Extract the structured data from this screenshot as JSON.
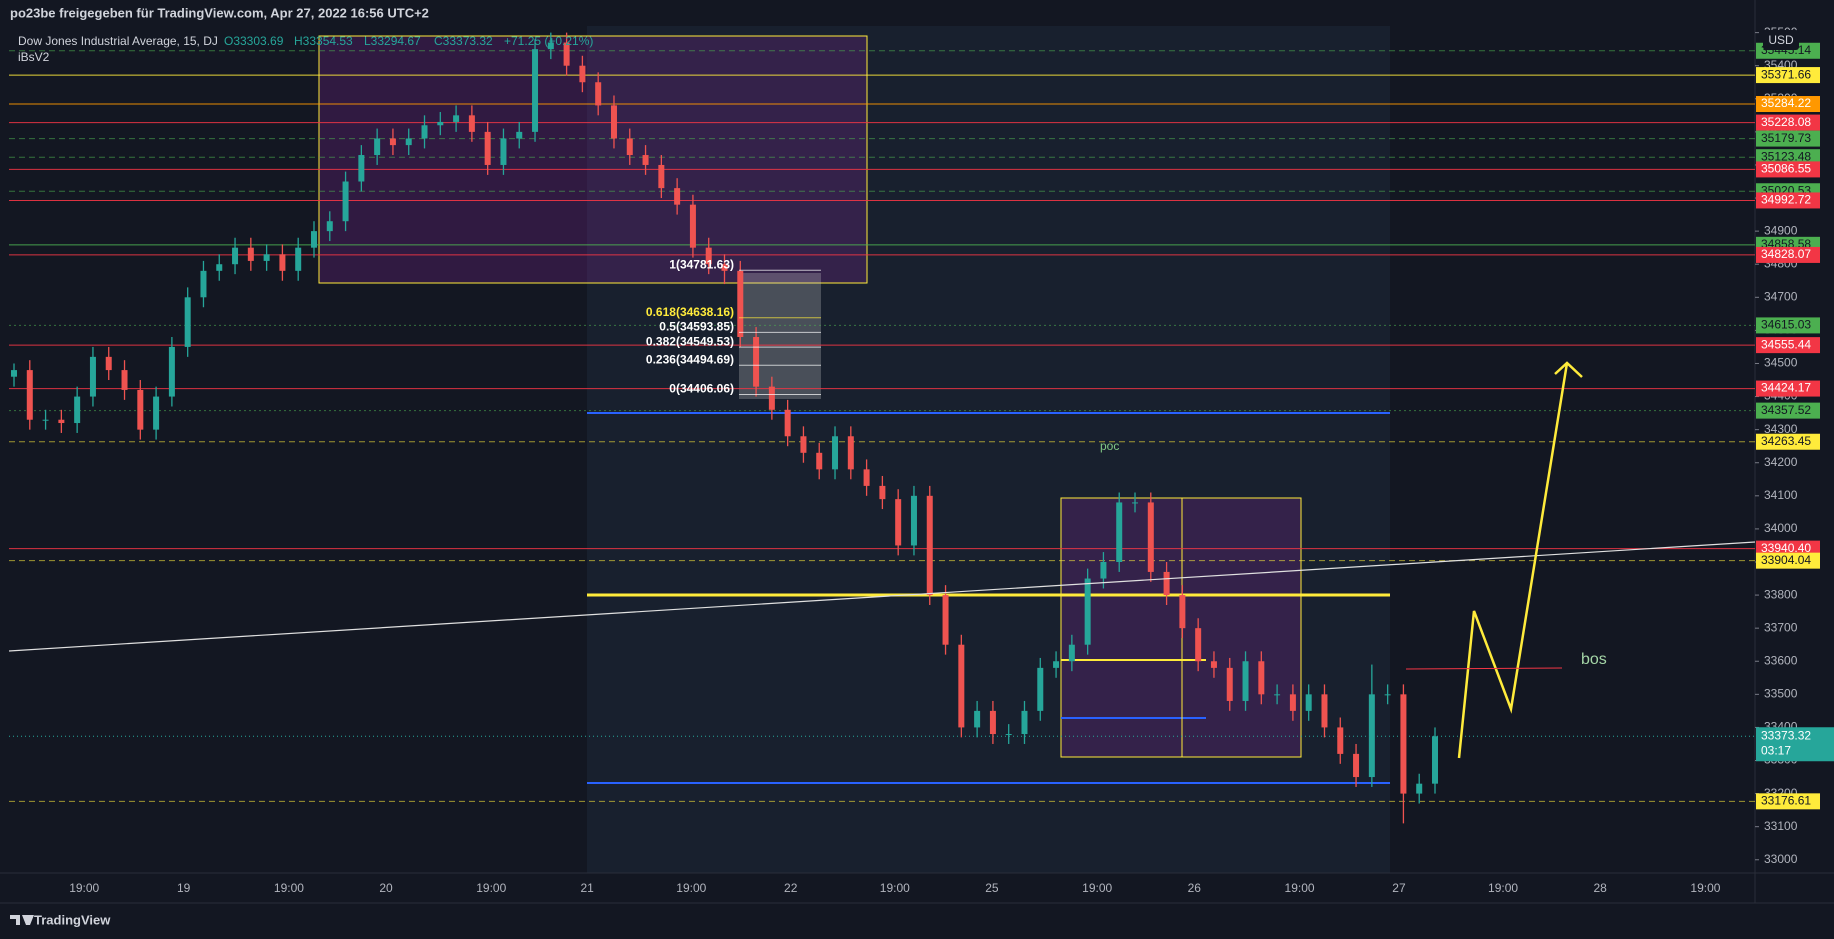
{
  "header": {
    "title": "po23be freigegeben für TradingView.com, Apr 27, 2022 16:56 UTC+2"
  },
  "footer": {
    "brand": "TradingView"
  },
  "chart_data": {
    "type": "candlestick",
    "title": "Dow Jones Industrial Average, 15, DJ",
    "ohlc_labels": [
      "O33303.69",
      "H33354.53",
      "L33294.67",
      "C33373.32"
    ],
    "change": "+71.25 (+0.21%)",
    "indicator": "iBsV2",
    "currency": "USD",
    "ylim": [
      32960,
      35520
    ],
    "yticks": [
      33000,
      33100,
      33200,
      33300,
      33400,
      33500,
      33600,
      33700,
      33800,
      33900,
      34000,
      34100,
      34200,
      34300,
      34400,
      34500,
      34600,
      34700,
      34800,
      34900,
      35000,
      35100,
      35200,
      35300,
      35400,
      35500
    ],
    "x_labels": [
      "19:00",
      "19",
      "19:00",
      "20",
      "19:00",
      "21",
      "19:00",
      "22",
      "19:00",
      "25",
      "19:00",
      "26",
      "19:00",
      "27",
      "19:00",
      "28",
      "19:00"
    ],
    "up_color": "#26a69a",
    "down_color": "#ef5350",
    "candles": [
      [
        34460,
        34500,
        34430,
        34480
      ],
      [
        34480,
        34510,
        34300,
        34330
      ],
      [
        34330,
        34360,
        34300,
        34330
      ],
      [
        34330,
        34360,
        34290,
        34320
      ],
      [
        34320,
        34430,
        34290,
        34400
      ],
      [
        34400,
        34550,
        34370,
        34520
      ],
      [
        34520,
        34550,
        34450,
        34480
      ],
      [
        34480,
        34510,
        34390,
        34420
      ],
      [
        34420,
        34450,
        34270,
        34300
      ],
      [
        34300,
        34430,
        34270,
        34400
      ],
      [
        34400,
        34580,
        34370,
        34550
      ],
      [
        34550,
        34730,
        34520,
        34700
      ],
      [
        34700,
        34810,
        34670,
        34780
      ],
      [
        34780,
        34830,
        34750,
        34800
      ],
      [
        34800,
        34880,
        34770,
        34850
      ],
      [
        34850,
        34880,
        34780,
        34810
      ],
      [
        34810,
        34860,
        34780,
        34830
      ],
      [
        34830,
        34860,
        34750,
        34780
      ],
      [
        34780,
        34880,
        34750,
        34850
      ],
      [
        34850,
        34930,
        34820,
        34900
      ],
      [
        34900,
        34960,
        34870,
        34930
      ],
      [
        34930,
        35080,
        34900,
        35050
      ],
      [
        35050,
        35160,
        35020,
        35130
      ],
      [
        35130,
        35210,
        35100,
        35180
      ],
      [
        35180,
        35210,
        35130,
        35160
      ],
      [
        35160,
        35210,
        35130,
        35180
      ],
      [
        35180,
        35250,
        35150,
        35220
      ],
      [
        35220,
        35260,
        35190,
        35230
      ],
      [
        35230,
        35280,
        35200,
        35250
      ],
      [
        35250,
        35280,
        35170,
        35200
      ],
      [
        35200,
        35230,
        35070,
        35100
      ],
      [
        35100,
        35210,
        35070,
        35180
      ],
      [
        35180,
        35230,
        35150,
        35200
      ],
      [
        35200,
        35480,
        35170,
        35450
      ],
      [
        35450,
        35500,
        35420,
        35470
      ],
      [
        35470,
        35500,
        35370,
        35400
      ],
      [
        35400,
        35430,
        35320,
        35350
      ],
      [
        35350,
        35380,
        35250,
        35280
      ],
      [
        35280,
        35310,
        35150,
        35180
      ],
      [
        35180,
        35210,
        35100,
        35130
      ],
      [
        35130,
        35160,
        35070,
        35100
      ],
      [
        35100,
        35130,
        35000,
        35030
      ],
      [
        35030,
        35060,
        34950,
        34980
      ],
      [
        34980,
        35010,
        34820,
        34850
      ],
      [
        34850,
        34880,
        34770,
        34800
      ],
      [
        34800,
        34830,
        34740,
        34780
      ],
      [
        34780,
        34810,
        34550,
        34580
      ],
      [
        34580,
        34610,
        34400,
        34430
      ],
      [
        34430,
        34460,
        34330,
        34360
      ],
      [
        34360,
        34390,
        34250,
        34280
      ],
      [
        34280,
        34310,
        34200,
        34230
      ],
      [
        34230,
        34260,
        34150,
        34180
      ],
      [
        34180,
        34310,
        34150,
        34280
      ],
      [
        34280,
        34310,
        34150,
        34180
      ],
      [
        34180,
        34210,
        34100,
        34130
      ],
      [
        34130,
        34160,
        34060,
        34090
      ],
      [
        34090,
        34120,
        33920,
        33950
      ],
      [
        33950,
        34130,
        33920,
        34100
      ],
      [
        34100,
        34130,
        33770,
        33800
      ],
      [
        33800,
        33830,
        33620,
        33650
      ],
      [
        33650,
        33680,
        33370,
        33400
      ],
      [
        33400,
        33480,
        33370,
        33450
      ],
      [
        33450,
        33480,
        33350,
        33380
      ],
      [
        33380,
        33410,
        33350,
        33380
      ],
      [
        33380,
        33480,
        33350,
        33450
      ],
      [
        33450,
        33610,
        33420,
        33580
      ],
      [
        33580,
        33630,
        33550,
        33600
      ],
      [
        33600,
        33680,
        33570,
        33650
      ],
      [
        33650,
        33880,
        33620,
        33850
      ],
      [
        33850,
        33930,
        33820,
        33900
      ],
      [
        33900,
        34110,
        33870,
        34080
      ],
      [
        34080,
        34110,
        34050,
        34080
      ],
      [
        34080,
        34110,
        33840,
        33870
      ],
      [
        33870,
        33900,
        33770,
        33800
      ],
      [
        33800,
        33830,
        33670,
        33700
      ],
      [
        33700,
        33730,
        33570,
        33600
      ],
      [
        33600,
        33630,
        33550,
        33580
      ],
      [
        33580,
        33610,
        33450,
        33480
      ],
      [
        33480,
        33630,
        33450,
        33600
      ],
      [
        33600,
        33630,
        33470,
        33500
      ],
      [
        33500,
        33530,
        33470,
        33500
      ],
      [
        33500,
        33530,
        33420,
        33450
      ],
      [
        33450,
        33530,
        33420,
        33500
      ],
      [
        33500,
        33530,
        33370,
        33400
      ],
      [
        33400,
        33430,
        33290,
        33320
      ],
      [
        33320,
        33350,
        33220,
        33250
      ],
      [
        33250,
        33590,
        33220,
        33500
      ],
      [
        33500,
        33530,
        33470,
        33500
      ],
      [
        33500,
        33530,
        33110,
        33200
      ],
      [
        33200,
        33260,
        33170,
        33230
      ],
      [
        33230,
        33400,
        33200,
        33373.32
      ]
    ],
    "levels": [
      {
        "value": 35445.14,
        "color": "#4caf50",
        "style": "dashed"
      },
      {
        "value": 35371.66,
        "color": "#ffeb3b",
        "style": "solid"
      },
      {
        "value": 35284.22,
        "color": "#ff9800",
        "style": "solid"
      },
      {
        "value": 35228.08,
        "color": "#f23645",
        "style": "solid"
      },
      {
        "value": 35179.73,
        "color": "#4caf50",
        "style": "dashed"
      },
      {
        "value": 35123.48,
        "color": "#4caf50",
        "style": "dashed"
      },
      {
        "value": 35086.55,
        "color": "#f23645",
        "style": "solid"
      },
      {
        "value": 35020.53,
        "color": "#4caf50",
        "style": "dashed"
      },
      {
        "value": 34992.72,
        "color": "#f23645",
        "style": "solid"
      },
      {
        "value": 34858.58,
        "color": "#4caf50",
        "style": "solid"
      },
      {
        "value": 34828.07,
        "color": "#f23645",
        "style": "solid"
      },
      {
        "value": 34615.03,
        "color": "#4caf50",
        "style": "dotted"
      },
      {
        "value": 34555.44,
        "color": "#f23645",
        "style": "solid"
      },
      {
        "value": 34424.17,
        "color": "#f23645",
        "style": "solid"
      },
      {
        "value": 34357.52,
        "color": "#4caf50",
        "style": "dotted"
      },
      {
        "value": 34263.45,
        "color": "#ffeb3b",
        "style": "dashed"
      },
      {
        "value": 33940.4,
        "label": "33940.40",
        "color": "#f23645",
        "style": "solid"
      },
      {
        "value": 33904.04,
        "color": "#ffeb3b",
        "style": "dashed"
      },
      {
        "value": 33176.61,
        "color": "#ffeb3b",
        "style": "dashed"
      }
    ],
    "current_price": {
      "value": 33373.32,
      "countdown": "03:17",
      "color": "#26a69a"
    },
    "fib_levels": [
      {
        "label": "1(34781.63)",
        "value": 34781.63,
        "color": "#ffffff"
      },
      {
        "label": "0.618(34638.16)",
        "value": 34638.16,
        "color": "#ffeb3b"
      },
      {
        "label": "0.5(34593.85)",
        "value": 34593.85,
        "color": "#ffffff"
      },
      {
        "label": "0.382(34549.53)",
        "value": 34549.53,
        "color": "#ffffff"
      },
      {
        "label": "0.236(34494.69)",
        "value": 34494.69,
        "color": "#ffffff"
      },
      {
        "label": "0(34406.06)",
        "value": 34406.06,
        "color": "#ffffff"
      }
    ],
    "annotations": [
      "poc",
      "bos"
    ]
  }
}
